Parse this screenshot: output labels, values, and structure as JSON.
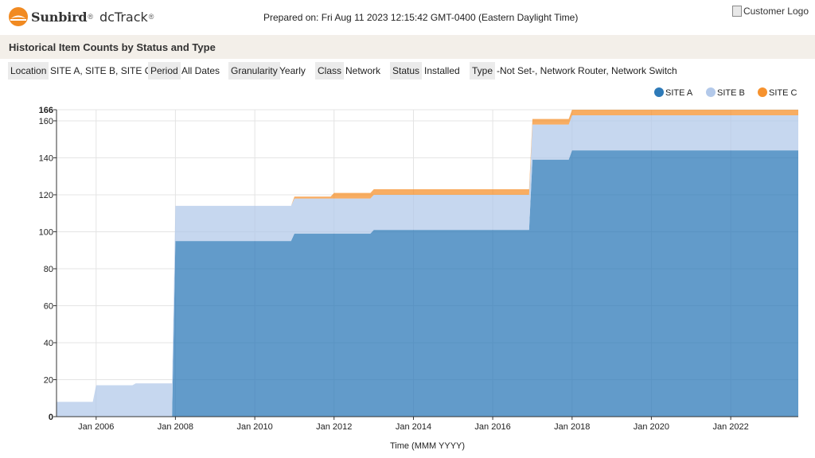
{
  "header": {
    "brand": "Sunbird",
    "brand_mark": "®",
    "product": "dcTrack",
    "product_mark": "®",
    "prepared_on": "Prepared on: Fri Aug 11 2023 12:15:42 GMT-0400 (Eastern Daylight Time)",
    "customer_logo_alt": "Customer Logo",
    "logo_icon": "sunbird-sun-icon",
    "logo_color": "#f18a21"
  },
  "report": {
    "title": "Historical Item Counts by Status and Type"
  },
  "filters": [
    {
      "label": "Location",
      "value": "SITE A, SITE B, SITE C"
    },
    {
      "label": "Period",
      "value": "All Dates"
    },
    {
      "label": "Granularity",
      "value": "Yearly"
    },
    {
      "label": "Class",
      "value": "Network"
    },
    {
      "label": "Status",
      "value": "Installed"
    },
    {
      "label": "Type",
      "value": "-Not Set-, Network Router, Network Switch"
    }
  ],
  "chart_data": {
    "type": "area",
    "stacked": true,
    "xlabel": "Time (MMM YYYY)",
    "ylabel": "",
    "ylim": [
      0,
      166
    ],
    "yticks": [
      0,
      20,
      40,
      60,
      80,
      100,
      120,
      140,
      160,
      166
    ],
    "xlim": [
      "2005-01-01",
      "2023-09-15"
    ],
    "xticks": [
      {
        "date": "2006-01-01",
        "label": "Jan 2006"
      },
      {
        "date": "2008-01-01",
        "label": "Jan 2008"
      },
      {
        "date": "2010-01-01",
        "label": "Jan 2010"
      },
      {
        "date": "2012-01-01",
        "label": "Jan 2012"
      },
      {
        "date": "2014-01-01",
        "label": "Jan 2014"
      },
      {
        "date": "2016-01-01",
        "label": "Jan 2016"
      },
      {
        "date": "2018-01-01",
        "label": "Jan 2018"
      },
      {
        "date": "2020-01-01",
        "label": "Jan 2020"
      },
      {
        "date": "2022-01-01",
        "label": "Jan 2022"
      }
    ],
    "grid": true,
    "legend_position": "top-right",
    "x": [
      "2005-01-01",
      "2005-12-01",
      "2006-01-01",
      "2006-12-01",
      "2007-01-01",
      "2007-12-01",
      "2008-01-01",
      "2010-12-01",
      "2011-01-01",
      "2011-12-01",
      "2012-01-01",
      "2012-12-01",
      "2013-01-01",
      "2016-12-01",
      "2017-01-01",
      "2017-12-01",
      "2018-01-01",
      "2023-09-15"
    ],
    "series": [
      {
        "name": "SITE A",
        "color": "#2e7ab8",
        "values": [
          0,
          0,
          0,
          0,
          0,
          0,
          95,
          95,
          99,
          99,
          99,
          99,
          101,
          101,
          139,
          139,
          144,
          144
        ]
      },
      {
        "name": "SITE B",
        "color": "#b3c9ea",
        "values": [
          8,
          8,
          17,
          17,
          18,
          18,
          19,
          19,
          19,
          19,
          19,
          19,
          19,
          19,
          19,
          19,
          19,
          19
        ]
      },
      {
        "name": "SITE C",
        "color": "#f6922e",
        "values": [
          0,
          0,
          0,
          0,
          0,
          0,
          0,
          0,
          1,
          1,
          3,
          3,
          3,
          3,
          3,
          3,
          3,
          3
        ]
      }
    ]
  }
}
